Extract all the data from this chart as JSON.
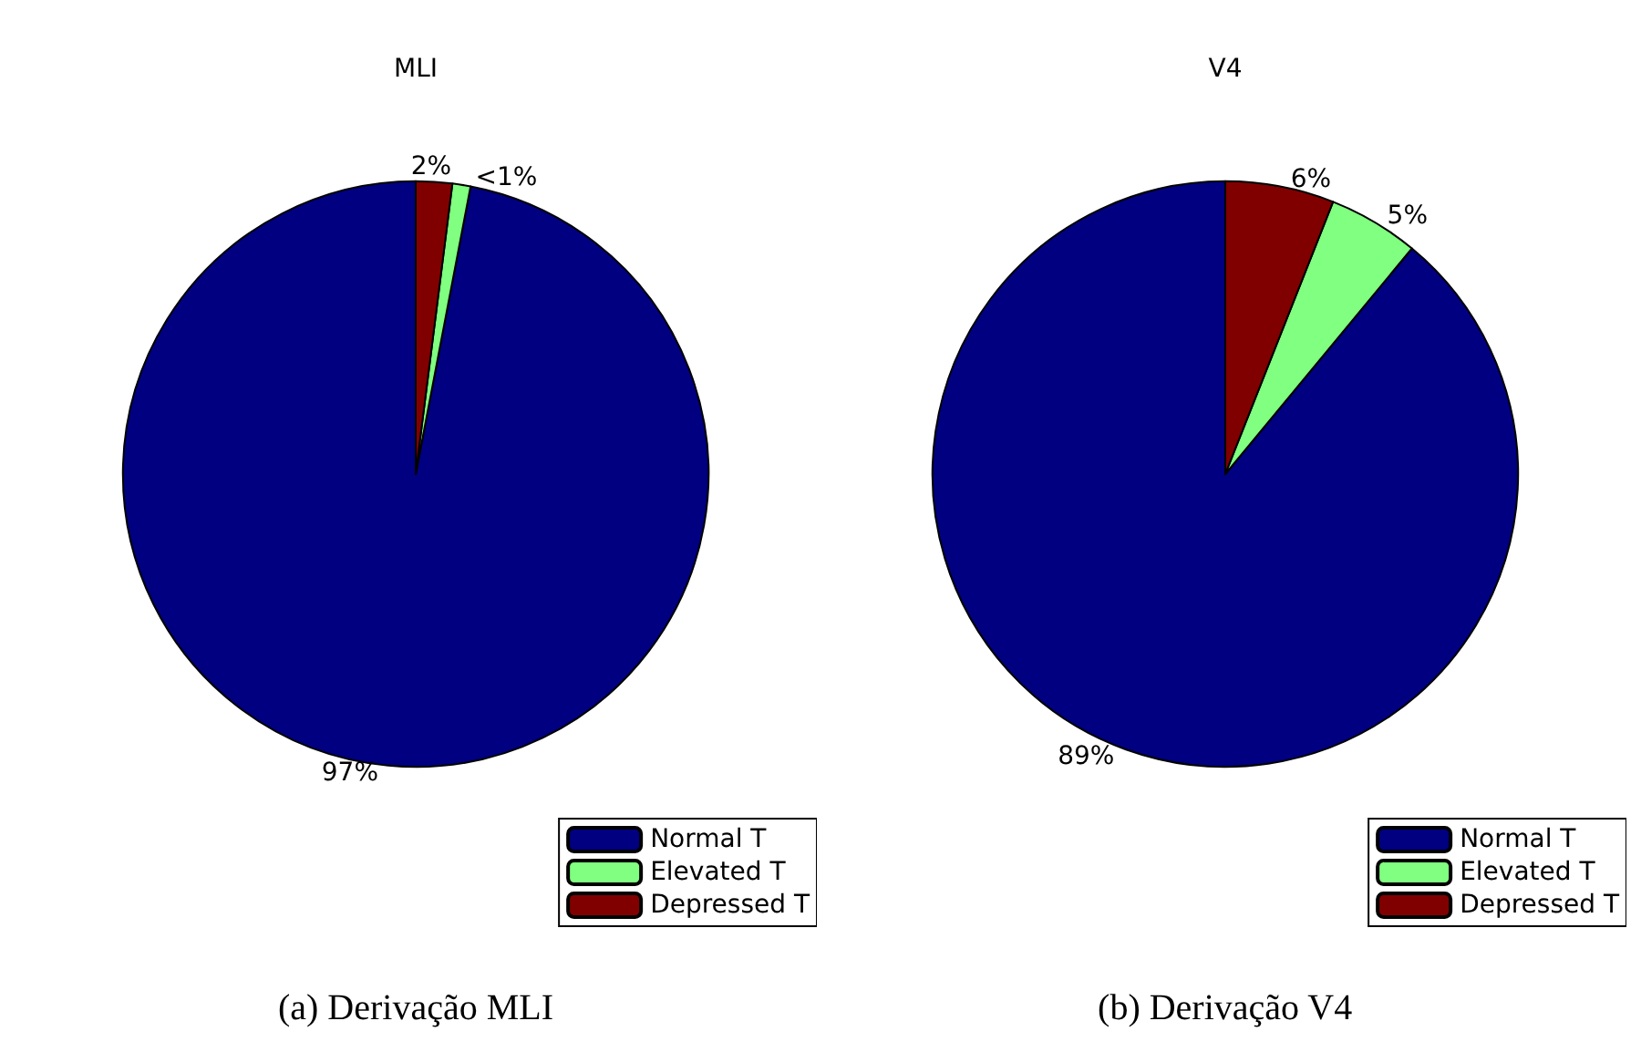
{
  "chart_data": [
    {
      "type": "pie",
      "title": "MLI",
      "categories": [
        "Normal T",
        "Elevated T",
        "Depressed T"
      ],
      "values": [
        97,
        1,
        2
      ],
      "colors": [
        "#000080",
        "#80ff80",
        "#800000"
      ],
      "value_labels": [
        "97%",
        "<1%",
        "2%"
      ],
      "legend": "bottom right",
      "annotations": [
        "(a) Derivação MLI"
      ]
    },
    {
      "type": "pie",
      "title": "V4",
      "categories": [
        "Normal T",
        "Elevated T",
        "Depressed T"
      ],
      "values": [
        89,
        5,
        6
      ],
      "colors": [
        "#000080",
        "#80ff80",
        "#800000"
      ],
      "value_labels": [
        "89%",
        "5%",
        "6%"
      ],
      "legend": "bottom right",
      "annotations": [
        "(b) Derivação V4"
      ]
    }
  ]
}
